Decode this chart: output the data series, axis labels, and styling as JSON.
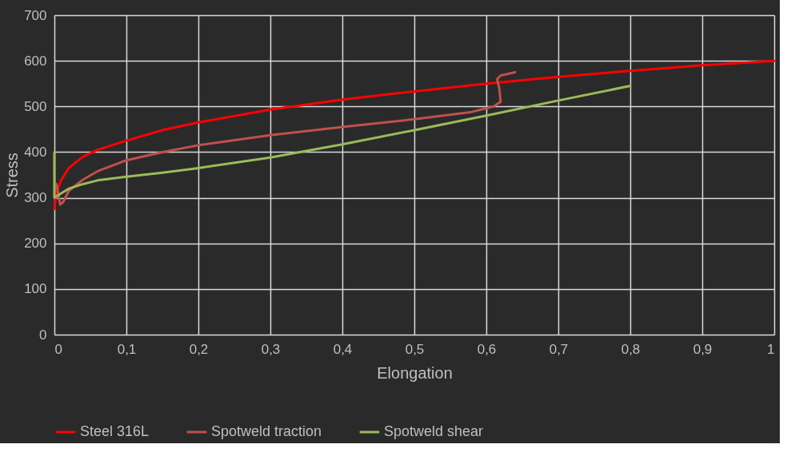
{
  "chart_data": {
    "type": "line",
    "xlabel": "Elongation",
    "ylabel": "Stress",
    "xlim": [
      0,
      1
    ],
    "ylim": [
      0,
      700
    ],
    "xticks": [
      0,
      {
        "value": 0.1,
        "label": "0,1"
      },
      {
        "value": 0.2,
        "label": "0,2"
      },
      {
        "value": 0.3,
        "label": "0,3"
      },
      {
        "value": 0.4,
        "label": "0,4"
      },
      {
        "value": 0.5,
        "label": "0,5"
      },
      {
        "value": 0.6,
        "label": "0,6"
      },
      {
        "value": 0.7,
        "label": "0,7"
      },
      {
        "value": 0.8,
        "label": "0,8"
      },
      {
        "value": 0.9,
        "label": "0,9"
      },
      1
    ],
    "yticks": [
      0,
      100,
      200,
      300,
      400,
      500,
      600,
      700
    ],
    "grid": true,
    "legend": "bottom",
    "marker": "none",
    "line_style": "solid",
    "series": [
      {
        "name": "Steel 316L",
        "color": "#ff0000",
        "x": [
          0,
          0.002,
          0.01,
          0.02,
          0.04,
          0.06,
          0.1,
          0.15,
          0.2,
          0.3,
          0.4,
          0.5,
          0.6,
          0.7,
          0.8,
          0.9,
          1.0
        ],
        "values": [
          275,
          310,
          340,
          365,
          390,
          405,
          425,
          448,
          465,
          493,
          515,
          533,
          550,
          565,
          578,
          590,
          600
        ]
      },
      {
        "name": "Spotweld traction",
        "color": "#c0504d",
        "x": [
          0.003,
          0.008,
          0.012,
          0.02,
          0.04,
          0.06,
          0.1,
          0.15,
          0.2,
          0.3,
          0.4,
          0.5,
          0.58,
          0.61,
          0.62,
          0.618,
          0.615,
          0.62,
          0.64
        ],
        "values": [
          330,
          285,
          290,
          315,
          340,
          358,
          382,
          400,
          415,
          437,
          455,
          472,
          488,
          500,
          510,
          540,
          560,
          568,
          575
        ]
      },
      {
        "name": "Spotweld shear",
        "color": "#9bbb59",
        "x": [
          0,
          0,
          0.01,
          0.02,
          0.04,
          0.06,
          0.1,
          0.15,
          0.2,
          0.3,
          0.4,
          0.5,
          0.6,
          0.7,
          0.8
        ],
        "values": [
          400,
          300,
          310,
          320,
          330,
          338,
          346,
          355,
          365,
          388,
          417,
          448,
          480,
          513,
          545
        ]
      }
    ]
  }
}
